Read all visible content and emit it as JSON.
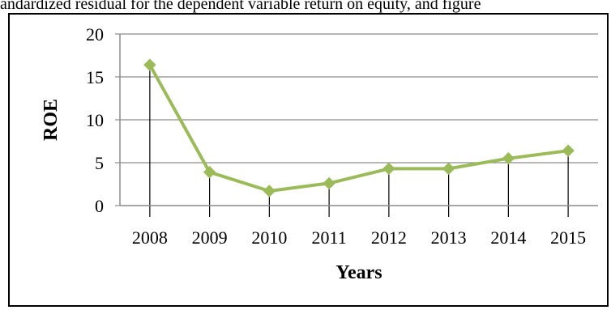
{
  "caption": {
    "text": "andardized residual for the dependent variable return on equity, and figure"
  },
  "chart_data": {
    "type": "line",
    "title": "",
    "xlabel": "Years",
    "ylabel": "ROE",
    "categories": [
      "2008",
      "2009",
      "2010",
      "2011",
      "2012",
      "2013",
      "2014",
      "2015"
    ],
    "series": [
      {
        "values": [
          16.4,
          3.9,
          1.7,
          2.6,
          4.3,
          4.3,
          5.5,
          6.4
        ]
      }
    ],
    "ylim": [
      0,
      20
    ],
    "yticks": [
      0,
      5,
      10,
      15,
      20
    ],
    "grid": "horizontal",
    "drop_lines": true,
    "legend": "none",
    "line_color": "#9bbb59",
    "marker": "diamond"
  }
}
